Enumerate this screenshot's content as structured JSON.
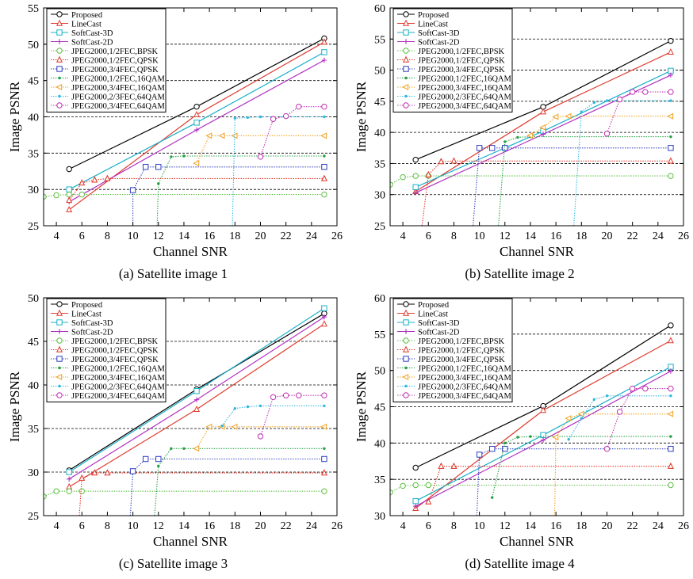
{
  "figure": {
    "panels": [
      "a",
      "b",
      "c",
      "d"
    ],
    "captions": [
      "(a) Satellite image 1",
      "(b) Satellite image 2",
      "(c) Satellite image 3",
      "(d) Satellite image 4"
    ]
  },
  "legend": [
    {
      "name": "Proposed",
      "color": "#000000",
      "marker": "circle",
      "dash": "solid"
    },
    {
      "name": "LineCast",
      "color": "#e03c31",
      "marker": "triangle",
      "dash": "solid"
    },
    {
      "name": "SoftCast-3D",
      "color": "#1ab0c8",
      "marker": "square",
      "dash": "solid"
    },
    {
      "name": "SoftCast-2D",
      "color": "#b030c0",
      "marker": "plus",
      "dash": "solid"
    },
    {
      "name": "JPEG2000,1/2FEC,BPSK",
      "color": "#5cc040",
      "marker": "circle",
      "dash": "dotted"
    },
    {
      "name": "JPEG2000,1/2FEC,QPSK",
      "color": "#e03020",
      "marker": "triangle",
      "dash": "dotted"
    },
    {
      "name": "JPEG2000,3/4FEC,QPSK",
      "color": "#3040c0",
      "marker": "square",
      "dash": "dotted"
    },
    {
      "name": "JPEG2000,1/2FEC,16QAM",
      "color": "#20a040",
      "marker": "dot",
      "dash": "dotted"
    },
    {
      "name": "JPEG2000,3/4FEC,16QAM",
      "color": "#f0a020",
      "marker": "triangle-left",
      "dash": "dotted"
    },
    {
      "name": "JPEG2000,2/3FEC,64QAM",
      "color": "#30b8e0",
      "marker": "dot",
      "dash": "dotted"
    },
    {
      "name": "JPEG2000,3/4FEC,64QAM",
      "color": "#c030b0",
      "marker": "circle",
      "dash": "dotted"
    }
  ],
  "chart_data": [
    {
      "type": "line",
      "caption": "(a) Satellite image 1",
      "xlabel": "Channel SNR",
      "ylabel": "Image PSNR",
      "xlim": [
        3,
        26
      ],
      "ylim": [
        25,
        55
      ],
      "xticks": [
        4,
        6,
        8,
        10,
        12,
        14,
        16,
        18,
        20,
        22,
        24,
        26
      ],
      "yticks": [
        25,
        30,
        35,
        40,
        45,
        50,
        55
      ],
      "grid_y": [
        30,
        35,
        40,
        45,
        50
      ],
      "legend_position": "top-left",
      "series": [
        {
          "name": "Proposed",
          "x": [
            5,
            15,
            25
          ],
          "y": [
            32.8,
            41.4,
            50.8
          ]
        },
        {
          "name": "LineCast",
          "x": [
            5,
            15,
            25
          ],
          "y": [
            27.2,
            40.3,
            50.3
          ]
        },
        {
          "name": "SoftCast-3D",
          "x": [
            5,
            15,
            25
          ],
          "y": [
            30.0,
            39.2,
            48.9
          ]
        },
        {
          "name": "SoftCast-2D",
          "x": [
            5,
            15,
            25
          ],
          "y": [
            28.3,
            38.2,
            47.8
          ]
        },
        {
          "name": "JPEG2000,1/2FEC,BPSK",
          "x": [
            3,
            4,
            5,
            6,
            25
          ],
          "y": [
            29.0,
            29.2,
            29.3,
            29.3,
            29.3
          ]
        },
        {
          "name": "JPEG2000,1/2FEC,QPSK",
          "x": [
            5,
            6,
            7,
            8,
            25
          ],
          "y": [
            28.5,
            30.9,
            31.3,
            31.5,
            31.5
          ]
        },
        {
          "name": "JPEG2000,3/4FEC,QPSK",
          "x": [
            10,
            10,
            11,
            12,
            25
          ],
          "y": [
            25,
            29.9,
            33.1,
            33.1,
            33.1
          ]
        },
        {
          "name": "JPEG2000,1/2FEC,16QAM",
          "x": [
            11.9,
            12,
            13,
            14,
            25
          ],
          "y": [
            25,
            30.8,
            34.5,
            34.6,
            34.6
          ]
        },
        {
          "name": "JPEG2000,3/4FEC,16QAM",
          "x": [
            15,
            16,
            17,
            18,
            25
          ],
          "y": [
            33.6,
            37.4,
            37.4,
            37.4,
            37.4
          ]
        },
        {
          "name": "JPEG2000,2/3FEC,64QAM",
          "x": [
            17.8,
            18,
            19,
            20,
            25
          ],
          "y": [
            25,
            39.8,
            39.9,
            40.0,
            40.0
          ]
        },
        {
          "name": "JPEG2000,3/4FEC,64QAM",
          "x": [
            20,
            21,
            22,
            23,
            25
          ],
          "y": [
            34.5,
            39.7,
            40.1,
            41.4,
            41.4
          ]
        }
      ]
    },
    {
      "type": "line",
      "caption": "(b) Satellite image 2",
      "xlabel": "Channel SNR",
      "ylabel": "Image PSNR",
      "xlim": [
        3,
        26
      ],
      "ylim": [
        25,
        60
      ],
      "xticks": [
        4,
        6,
        8,
        10,
        12,
        14,
        16,
        18,
        20,
        22,
        24,
        26
      ],
      "yticks": [
        25,
        30,
        35,
        40,
        45,
        50,
        55,
        60
      ],
      "grid_y": [
        30,
        35,
        40,
        45,
        50,
        55
      ],
      "legend_position": "top-left",
      "series": [
        {
          "name": "Proposed",
          "x": [
            5,
            15,
            25
          ],
          "y": [
            35.6,
            44.1,
            54.7
          ]
        },
        {
          "name": "LineCast",
          "x": [
            5,
            15,
            25
          ],
          "y": [
            30.5,
            43.3,
            52.9
          ]
        },
        {
          "name": "SoftCast-3D",
          "x": [
            5,
            15,
            25
          ],
          "y": [
            31.2,
            40.2,
            49.9
          ]
        },
        {
          "name": "SoftCast-2D",
          "x": [
            5,
            15,
            25
          ],
          "y": [
            30.3,
            39.7,
            49.2
          ]
        },
        {
          "name": "JPEG2000,1/2FEC,BPSK",
          "x": [
            3,
            4,
            5,
            6,
            25
          ],
          "y": [
            31.6,
            32.8,
            33.0,
            33.0,
            33.0
          ]
        },
        {
          "name": "JPEG2000,1/2FEC,QPSK",
          "x": [
            5.5,
            6,
            7,
            8,
            25
          ],
          "y": [
            25,
            33.2,
            35.3,
            35.4,
            35.4
          ]
        },
        {
          "name": "JPEG2000,3/4FEC,QPSK",
          "x": [
            9.5,
            10,
            11,
            12,
            25
          ],
          "y": [
            25,
            37.5,
            37.5,
            37.5,
            37.5
          ]
        },
        {
          "name": "JPEG2000,1/2FEC,16QAM",
          "x": [
            11.5,
            12,
            13,
            14,
            25
          ],
          "y": [
            25,
            38.5,
            39.2,
            39.3,
            39.3
          ]
        },
        {
          "name": "JPEG2000,3/4FEC,16QAM",
          "x": [
            14,
            15,
            16,
            17,
            25
          ],
          "y": [
            39.5,
            40.8,
            42.5,
            42.6,
            42.6
          ]
        },
        {
          "name": "JPEG2000,2/3FEC,64QAM",
          "x": [
            17.4,
            18,
            19,
            20,
            25
          ],
          "y": [
            25,
            43.3,
            44.8,
            45.1,
            45.1
          ]
        },
        {
          "name": "JPEG2000,3/4FEC,64QAM",
          "x": [
            20,
            21,
            22,
            23,
            25
          ],
          "y": [
            39.8,
            45.3,
            46.5,
            46.5,
            46.5
          ]
        }
      ]
    },
    {
      "type": "line",
      "caption": "(c) Satellite image 3",
      "xlabel": "Channel SNR",
      "ylabel": "Image PSNR",
      "xlim": [
        3,
        26
      ],
      "ylim": [
        25,
        50
      ],
      "xticks": [
        4,
        6,
        8,
        10,
        12,
        14,
        16,
        18,
        20,
        22,
        24,
        26
      ],
      "yticks": [
        25,
        30,
        35,
        40,
        45,
        50
      ],
      "grid_y": [
        30,
        35,
        40,
        45
      ],
      "legend_position": "top-left",
      "series": [
        {
          "name": "Proposed",
          "x": [
            5,
            15,
            25
          ],
          "y": [
            30.2,
            39.5,
            48.2
          ]
        },
        {
          "name": "LineCast",
          "x": [
            5,
            15,
            25
          ],
          "y": [
            28.3,
            37.2,
            47.0
          ]
        },
        {
          "name": "SoftCast-3D",
          "x": [
            5,
            15,
            25
          ],
          "y": [
            30.0,
            39.3,
            48.8
          ]
        },
        {
          "name": "SoftCast-2D",
          "x": [
            5,
            15,
            25
          ],
          "y": [
            29.2,
            38.3,
            47.8
          ]
        },
        {
          "name": "JPEG2000,1/2FEC,BPSK",
          "x": [
            3,
            4,
            5,
            6,
            25
          ],
          "y": [
            27.2,
            27.8,
            27.8,
            27.8,
            27.8
          ]
        },
        {
          "name": "JPEG2000,1/2FEC,QPSK",
          "x": [
            5.8,
            6,
            7,
            8,
            25
          ],
          "y": [
            25,
            29.3,
            29.9,
            29.9,
            29.9
          ]
        },
        {
          "name": "JPEG2000,3/4FEC,QPSK",
          "x": [
            9.8,
            10,
            11,
            12,
            25
          ],
          "y": [
            25,
            30.1,
            31.5,
            31.5,
            31.5
          ]
        },
        {
          "name": "JPEG2000,1/2FEC,16QAM",
          "x": [
            11.7,
            12,
            13,
            14,
            25
          ],
          "y": [
            25,
            30.7,
            32.7,
            32.7,
            32.7
          ]
        },
        {
          "name": "JPEG2000,3/4FEC,16QAM",
          "x": [
            15,
            16,
            17,
            18,
            25
          ],
          "y": [
            32.7,
            35.2,
            35.2,
            35.2,
            35.2
          ]
        },
        {
          "name": "JPEG2000,2/3FEC,64QAM",
          "x": [
            17,
            18,
            19,
            20,
            25
          ],
          "y": [
            35.3,
            37.3,
            37.5,
            37.6,
            37.6
          ]
        },
        {
          "name": "JPEG2000,3/4FEC,64QAM",
          "x": [
            20,
            21,
            22,
            23,
            25
          ],
          "y": [
            34.1,
            38.6,
            38.8,
            38.8,
            38.8
          ]
        }
      ]
    },
    {
      "type": "line",
      "caption": "(d) Satellite image 4",
      "xlabel": "Channel SNR",
      "ylabel": "Image PSNR",
      "xlim": [
        3,
        26
      ],
      "ylim": [
        30,
        60
      ],
      "xticks": [
        4,
        6,
        8,
        10,
        12,
        14,
        16,
        18,
        20,
        22,
        24,
        26
      ],
      "yticks": [
        30,
        35,
        40,
        45,
        50,
        55,
        60
      ],
      "grid_y": [
        35,
        40,
        45,
        50,
        55
      ],
      "legend_position": "top-left",
      "series": [
        {
          "name": "Proposed",
          "x": [
            5,
            15,
            25
          ],
          "y": [
            36.6,
            45.1,
            56.2
          ]
        },
        {
          "name": "LineCast",
          "x": [
            5,
            15,
            25
          ],
          "y": [
            31.0,
            44.5,
            54.1
          ]
        },
        {
          "name": "SoftCast-3D",
          "x": [
            5,
            15,
            25
          ],
          "y": [
            32.0,
            41.1,
            50.5
          ]
        },
        {
          "name": "SoftCast-2D",
          "x": [
            5,
            15,
            25
          ],
          "y": [
            31.3,
            40.4,
            49.9
          ]
        },
        {
          "name": "JPEG2000,1/2FEC,BPSK",
          "x": [
            3,
            4,
            5,
            6,
            25
          ],
          "y": [
            33.2,
            34.1,
            34.2,
            34.2,
            34.2
          ]
        },
        {
          "name": "JPEG2000,1/2FEC,QPSK",
          "x": [
            6,
            7,
            8,
            25
          ],
          "y": [
            31.9,
            36.8,
            36.8,
            36.8
          ]
        },
        {
          "name": "JPEG2000,3/4FEC,QPSK",
          "x": [
            9.8,
            10,
            11,
            12,
            25
          ],
          "y": [
            30,
            38.4,
            39.2,
            39.2,
            39.2
          ]
        },
        {
          "name": "JPEG2000,1/2FEC,16QAM",
          "x": [
            11,
            12,
            13,
            14,
            25
          ],
          "y": [
            32.5,
            40.0,
            40.8,
            40.9,
            40.9
          ]
        },
        {
          "name": "JPEG2000,3/4FEC,16QAM",
          "x": [
            15.9,
            16,
            17,
            18,
            25
          ],
          "y": [
            30,
            40.8,
            43.4,
            44.0,
            44.0
          ]
        },
        {
          "name": "JPEG2000,2/3FEC,64QAM",
          "x": [
            17,
            18,
            19,
            20,
            25
          ],
          "y": [
            40.5,
            43.4,
            46.0,
            46.5,
            46.5
          ]
        },
        {
          "name": "JPEG2000,3/4FEC,64QAM",
          "x": [
            20,
            21,
            22,
            23,
            25
          ],
          "y": [
            39.2,
            44.3,
            47.5,
            47.5,
            47.5
          ]
        }
      ]
    }
  ]
}
